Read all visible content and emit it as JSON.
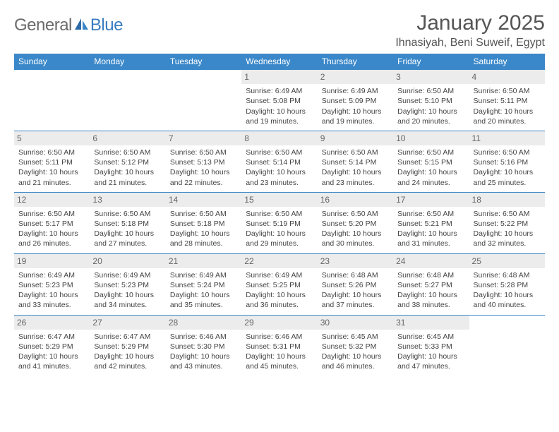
{
  "logo": {
    "text_gray": "General",
    "text_blue": "Blue"
  },
  "title": "January 2025",
  "location": "Ihnasiyah, Beni Suweif, Egypt",
  "colors": {
    "header_bg": "#3a88c9",
    "header_text": "#ffffff",
    "daynum_bg": "#ececec",
    "body_text": "#444444",
    "rule": "#3a88c9",
    "logo_gray": "#6b6b6b",
    "logo_blue": "#3a7cc0"
  },
  "typography": {
    "title_fontsize": 30,
    "location_fontsize": 16,
    "dayhead_fontsize": 12,
    "daynum_fontsize": 12,
    "cell_fontsize": 10.5
  },
  "day_headers": [
    "Sunday",
    "Monday",
    "Tuesday",
    "Wednesday",
    "Thursday",
    "Friday",
    "Saturday"
  ],
  "weeks": [
    [
      {
        "empty": true
      },
      {
        "empty": true
      },
      {
        "empty": true
      },
      {
        "day": "1",
        "sunrise": "6:49 AM",
        "sunset": "5:08 PM",
        "daylight": "10 hours and 19 minutes."
      },
      {
        "day": "2",
        "sunrise": "6:49 AM",
        "sunset": "5:09 PM",
        "daylight": "10 hours and 19 minutes."
      },
      {
        "day": "3",
        "sunrise": "6:50 AM",
        "sunset": "5:10 PM",
        "daylight": "10 hours and 20 minutes."
      },
      {
        "day": "4",
        "sunrise": "6:50 AM",
        "sunset": "5:11 PM",
        "daylight": "10 hours and 20 minutes."
      }
    ],
    [
      {
        "day": "5",
        "sunrise": "6:50 AM",
        "sunset": "5:11 PM",
        "daylight": "10 hours and 21 minutes."
      },
      {
        "day": "6",
        "sunrise": "6:50 AM",
        "sunset": "5:12 PM",
        "daylight": "10 hours and 21 minutes."
      },
      {
        "day": "7",
        "sunrise": "6:50 AM",
        "sunset": "5:13 PM",
        "daylight": "10 hours and 22 minutes."
      },
      {
        "day": "8",
        "sunrise": "6:50 AM",
        "sunset": "5:14 PM",
        "daylight": "10 hours and 23 minutes."
      },
      {
        "day": "9",
        "sunrise": "6:50 AM",
        "sunset": "5:14 PM",
        "daylight": "10 hours and 23 minutes."
      },
      {
        "day": "10",
        "sunrise": "6:50 AM",
        "sunset": "5:15 PM",
        "daylight": "10 hours and 24 minutes."
      },
      {
        "day": "11",
        "sunrise": "6:50 AM",
        "sunset": "5:16 PM",
        "daylight": "10 hours and 25 minutes."
      }
    ],
    [
      {
        "day": "12",
        "sunrise": "6:50 AM",
        "sunset": "5:17 PM",
        "daylight": "10 hours and 26 minutes."
      },
      {
        "day": "13",
        "sunrise": "6:50 AM",
        "sunset": "5:18 PM",
        "daylight": "10 hours and 27 minutes."
      },
      {
        "day": "14",
        "sunrise": "6:50 AM",
        "sunset": "5:18 PM",
        "daylight": "10 hours and 28 minutes."
      },
      {
        "day": "15",
        "sunrise": "6:50 AM",
        "sunset": "5:19 PM",
        "daylight": "10 hours and 29 minutes."
      },
      {
        "day": "16",
        "sunrise": "6:50 AM",
        "sunset": "5:20 PM",
        "daylight": "10 hours and 30 minutes."
      },
      {
        "day": "17",
        "sunrise": "6:50 AM",
        "sunset": "5:21 PM",
        "daylight": "10 hours and 31 minutes."
      },
      {
        "day": "18",
        "sunrise": "6:50 AM",
        "sunset": "5:22 PM",
        "daylight": "10 hours and 32 minutes."
      }
    ],
    [
      {
        "day": "19",
        "sunrise": "6:49 AM",
        "sunset": "5:23 PM",
        "daylight": "10 hours and 33 minutes."
      },
      {
        "day": "20",
        "sunrise": "6:49 AM",
        "sunset": "5:23 PM",
        "daylight": "10 hours and 34 minutes."
      },
      {
        "day": "21",
        "sunrise": "6:49 AM",
        "sunset": "5:24 PM",
        "daylight": "10 hours and 35 minutes."
      },
      {
        "day": "22",
        "sunrise": "6:49 AM",
        "sunset": "5:25 PM",
        "daylight": "10 hours and 36 minutes."
      },
      {
        "day": "23",
        "sunrise": "6:48 AM",
        "sunset": "5:26 PM",
        "daylight": "10 hours and 37 minutes."
      },
      {
        "day": "24",
        "sunrise": "6:48 AM",
        "sunset": "5:27 PM",
        "daylight": "10 hours and 38 minutes."
      },
      {
        "day": "25",
        "sunrise": "6:48 AM",
        "sunset": "5:28 PM",
        "daylight": "10 hours and 40 minutes."
      }
    ],
    [
      {
        "day": "26",
        "sunrise": "6:47 AM",
        "sunset": "5:29 PM",
        "daylight": "10 hours and 41 minutes."
      },
      {
        "day": "27",
        "sunrise": "6:47 AM",
        "sunset": "5:29 PM",
        "daylight": "10 hours and 42 minutes."
      },
      {
        "day": "28",
        "sunrise": "6:46 AM",
        "sunset": "5:30 PM",
        "daylight": "10 hours and 43 minutes."
      },
      {
        "day": "29",
        "sunrise": "6:46 AM",
        "sunset": "5:31 PM",
        "daylight": "10 hours and 45 minutes."
      },
      {
        "day": "30",
        "sunrise": "6:45 AM",
        "sunset": "5:32 PM",
        "daylight": "10 hours and 46 minutes."
      },
      {
        "day": "31",
        "sunrise": "6:45 AM",
        "sunset": "5:33 PM",
        "daylight": "10 hours and 47 minutes."
      },
      {
        "empty": true
      }
    ]
  ],
  "labels": {
    "sunrise": "Sunrise:",
    "sunset": "Sunset:",
    "daylight": "Daylight:"
  }
}
